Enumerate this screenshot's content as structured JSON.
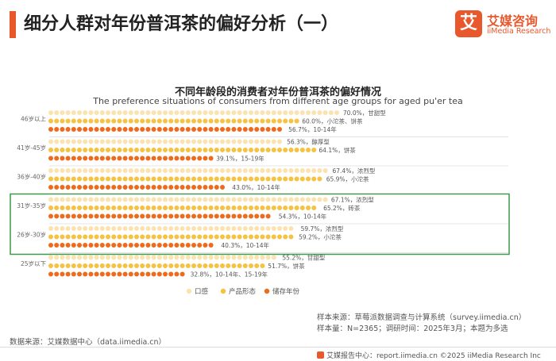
{
  "page": {
    "title": "细分人群对年份普洱茶的偏好分析（一）"
  },
  "logo": {
    "icon_char": "艾",
    "name_cn": "艾媒咨询",
    "name_en": "iiMedia Research"
  },
  "colors": {
    "accent": "#e8582c",
    "series1": "#fbe3b0",
    "series2": "#f5c242",
    "series3": "#ee6a1c",
    "highlight_box": "#3a9a4a"
  },
  "chart_data": {
    "type": "bar",
    "orientation": "horizontal",
    "title": "不同年龄段的消费者对年份普洱茶的偏好情况",
    "subtitle": "The preference situations of consumers from different age groups for aged pu'er tea",
    "categories": [
      "46岁以上",
      "41岁-45岁",
      "36岁-40岁",
      "31岁-35岁",
      "26岁-30岁",
      "25岁以下"
    ],
    "series": [
      {
        "name": "口感",
        "values": [
          70.0,
          56.3,
          67.4,
          67.1,
          59.7,
          55.2
        ],
        "labels": [
          "70.0%，甘甜型",
          "56.3%，醇厚型",
          "67.4%，浓烈型",
          "67.1%，浓烈型",
          "59.7%，浓烈型",
          "55.2%，甘甜型"
        ]
      },
      {
        "name": "产品形态",
        "values": [
          60.0,
          64.1,
          65.9,
          65.2,
          59.2,
          51.7
        ],
        "labels": [
          "60.0%，小沱茶、饼茶",
          "64.1%，饼茶",
          "65.9%，小沱茶",
          "65.2%，砖茶",
          "59.2%，小沱茶",
          "51.7%，饼茶"
        ]
      },
      {
        "name": "储存年份",
        "values": [
          56.7,
          39.1,
          43.0,
          54.3,
          40.3,
          32.8
        ],
        "labels": [
          "56.7%，10-14年",
          "39.1%，15-19年",
          "43.0%，10-14年",
          "54.3%，10-14年",
          "40.3%，10-14年",
          "32.8%，10-14年、15-19年"
        ]
      }
    ],
    "xlim": [
      0,
      100
    ],
    "legend_position": "bottom",
    "highlighted_categories": [
      "31岁-35岁",
      "26岁-30岁"
    ]
  },
  "footer": {
    "data_source": "数据来源：艾媒数据中心（data.iimedia.cn）",
    "sample_source": "样本来源：草莓派数据调查与计算系统（survey.iimedia.cn）",
    "sample_info": "样本量：N=2365；调研时间：2025年3月；本题为多选",
    "copyright": "艾媒报告中心：report.iimedia.cn  ©2025  iiMedia Research  Inc"
  }
}
